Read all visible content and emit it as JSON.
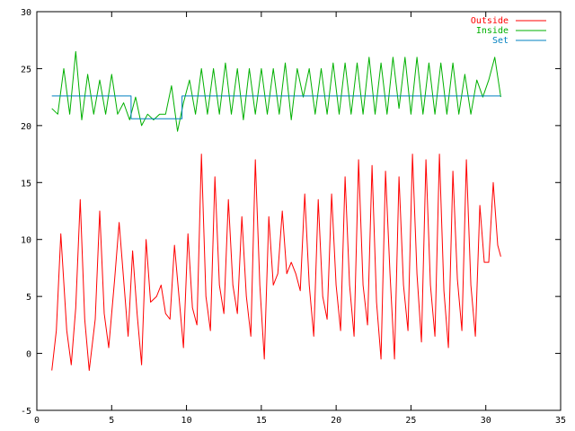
{
  "chart_data": {
    "type": "line",
    "title": "",
    "xlabel": "",
    "ylabel": "",
    "xlim": [
      0,
      35
    ],
    "ylim": [
      -5,
      30
    ],
    "xticks": [
      0,
      5,
      10,
      15,
      20,
      25,
      30,
      35
    ],
    "yticks": [
      -5,
      0,
      5,
      10,
      15,
      20,
      25,
      30
    ],
    "x_tick_labels": [
      "0",
      "5",
      "10",
      "15",
      "20",
      "25",
      "30",
      "35"
    ],
    "y_tick_labels": [
      "-5",
      "0",
      "5",
      "10",
      "15",
      "20",
      "25",
      "30"
    ],
    "grid": false,
    "legend_position": "top-right",
    "series": [
      {
        "name": "Outside",
        "color": "#ff0000",
        "x": [
          1.0,
          1.3,
          1.6,
          2.0,
          2.3,
          2.6,
          2.9,
          3.2,
          3.5,
          3.9,
          4.2,
          4.5,
          4.8,
          5.2,
          5.5,
          5.8,
          6.1,
          6.4,
          6.7,
          7.0,
          7.3,
          7.6,
          8.0,
          8.3,
          8.6,
          8.9,
          9.2,
          9.5,
          9.8,
          10.1,
          10.4,
          10.7,
          11.0,
          11.3,
          11.6,
          11.9,
          12.2,
          12.5,
          12.8,
          13.1,
          13.4,
          13.7,
          14.0,
          14.3,
          14.6,
          14.9,
          15.2,
          15.5,
          15.8,
          16.1,
          16.4,
          16.7,
          17.0,
          17.3,
          17.6,
          17.9,
          18.2,
          18.5,
          18.8,
          19.1,
          19.4,
          19.7,
          20.0,
          20.3,
          20.6,
          20.9,
          21.2,
          21.5,
          21.8,
          22.1,
          22.4,
          22.7,
          23.0,
          23.3,
          23.6,
          23.9,
          24.2,
          24.5,
          24.8,
          25.1,
          25.4,
          25.7,
          26.0,
          26.3,
          26.6,
          26.9,
          27.2,
          27.5,
          27.8,
          28.1,
          28.4,
          28.7,
          29.0,
          29.3,
          29.6,
          29.9,
          30.2,
          30.5,
          30.8,
          31.0
        ],
        "y": [
          -1.5,
          2.0,
          10.5,
          2.0,
          -1.0,
          4.0,
          13.5,
          3.0,
          -1.5,
          3.0,
          12.5,
          3.5,
          0.5,
          6.5,
          11.5,
          6.5,
          1.5,
          9.0,
          3.5,
          -1.0,
          10.0,
          4.5,
          5.0,
          6.0,
          3.5,
          3.0,
          9.5,
          5.0,
          0.5,
          10.5,
          4.0,
          2.5,
          17.5,
          5.0,
          2.0,
          15.5,
          6.0,
          3.5,
          13.5,
          6.0,
          3.5,
          12.0,
          5.0,
          1.5,
          17.0,
          6.0,
          -0.5,
          12.0,
          6.0,
          7.0,
          12.5,
          7.0,
          8.0,
          7.0,
          5.5,
          14.0,
          6.0,
          1.5,
          13.5,
          5.0,
          3.0,
          14.0,
          6.0,
          2.0,
          15.5,
          6.0,
          1.5,
          17.0,
          6.0,
          2.5,
          16.5,
          4.5,
          -0.5,
          16.0,
          7.0,
          -0.5,
          15.5,
          6.0,
          2.0,
          17.5,
          7.0,
          1.0,
          17.0,
          6.0,
          1.5,
          17.5,
          5.5,
          0.5,
          16.0,
          6.5,
          2.0,
          17.0,
          6.0,
          1.5,
          13.0,
          8.0,
          8.0,
          15.0,
          9.5,
          8.5
        ]
      },
      {
        "name": "Inside",
        "color": "#00b000",
        "x": [
          1.0,
          1.4,
          1.8,
          2.2,
          2.6,
          3.0,
          3.4,
          3.8,
          4.2,
          4.6,
          5.0,
          5.4,
          5.8,
          6.2,
          6.6,
          7.0,
          7.4,
          7.8,
          8.2,
          8.6,
          9.0,
          9.4,
          9.8,
          10.2,
          10.6,
          11.0,
          11.4,
          11.8,
          12.2,
          12.6,
          13.0,
          13.4,
          13.8,
          14.2,
          14.6,
          15.0,
          15.4,
          15.8,
          16.2,
          16.6,
          17.0,
          17.4,
          17.8,
          18.2,
          18.6,
          19.0,
          19.4,
          19.8,
          20.2,
          20.6,
          21.0,
          21.4,
          21.8,
          22.2,
          22.6,
          23.0,
          23.4,
          23.8,
          24.2,
          24.6,
          25.0,
          25.4,
          25.8,
          26.2,
          26.6,
          27.0,
          27.4,
          27.8,
          28.2,
          28.6,
          29.0,
          29.4,
          29.8,
          30.2,
          30.6,
          31.0
        ],
        "y": [
          21.5,
          21.0,
          25.0,
          21.0,
          26.5,
          20.5,
          24.5,
          21.0,
          24.0,
          21.0,
          24.5,
          21.0,
          22.0,
          20.5,
          22.5,
          20.0,
          21.0,
          20.5,
          21.0,
          21.0,
          23.5,
          19.5,
          22.0,
          24.0,
          21.0,
          25.0,
          21.0,
          25.0,
          21.0,
          25.5,
          21.0,
          25.0,
          20.5,
          25.0,
          21.0,
          25.0,
          21.0,
          25.0,
          21.0,
          25.5,
          20.5,
          25.0,
          22.5,
          25.0,
          21.0,
          25.0,
          21.0,
          25.5,
          21.0,
          25.5,
          21.0,
          25.5,
          21.0,
          26.0,
          21.0,
          25.5,
          21.0,
          26.0,
          21.5,
          26.0,
          21.0,
          26.0,
          21.0,
          25.5,
          21.0,
          25.5,
          21.0,
          25.5,
          21.0,
          24.5,
          21.0,
          24.0,
          22.5,
          24.0,
          26.0,
          22.5
        ]
      },
      {
        "name": "Set",
        "color": "#0080c0",
        "x": [
          1.0,
          6.3,
          6.3,
          9.7,
          9.7,
          31.0
        ],
        "y": [
          22.6,
          22.6,
          20.6,
          20.6,
          22.6,
          22.6
        ]
      }
    ]
  }
}
